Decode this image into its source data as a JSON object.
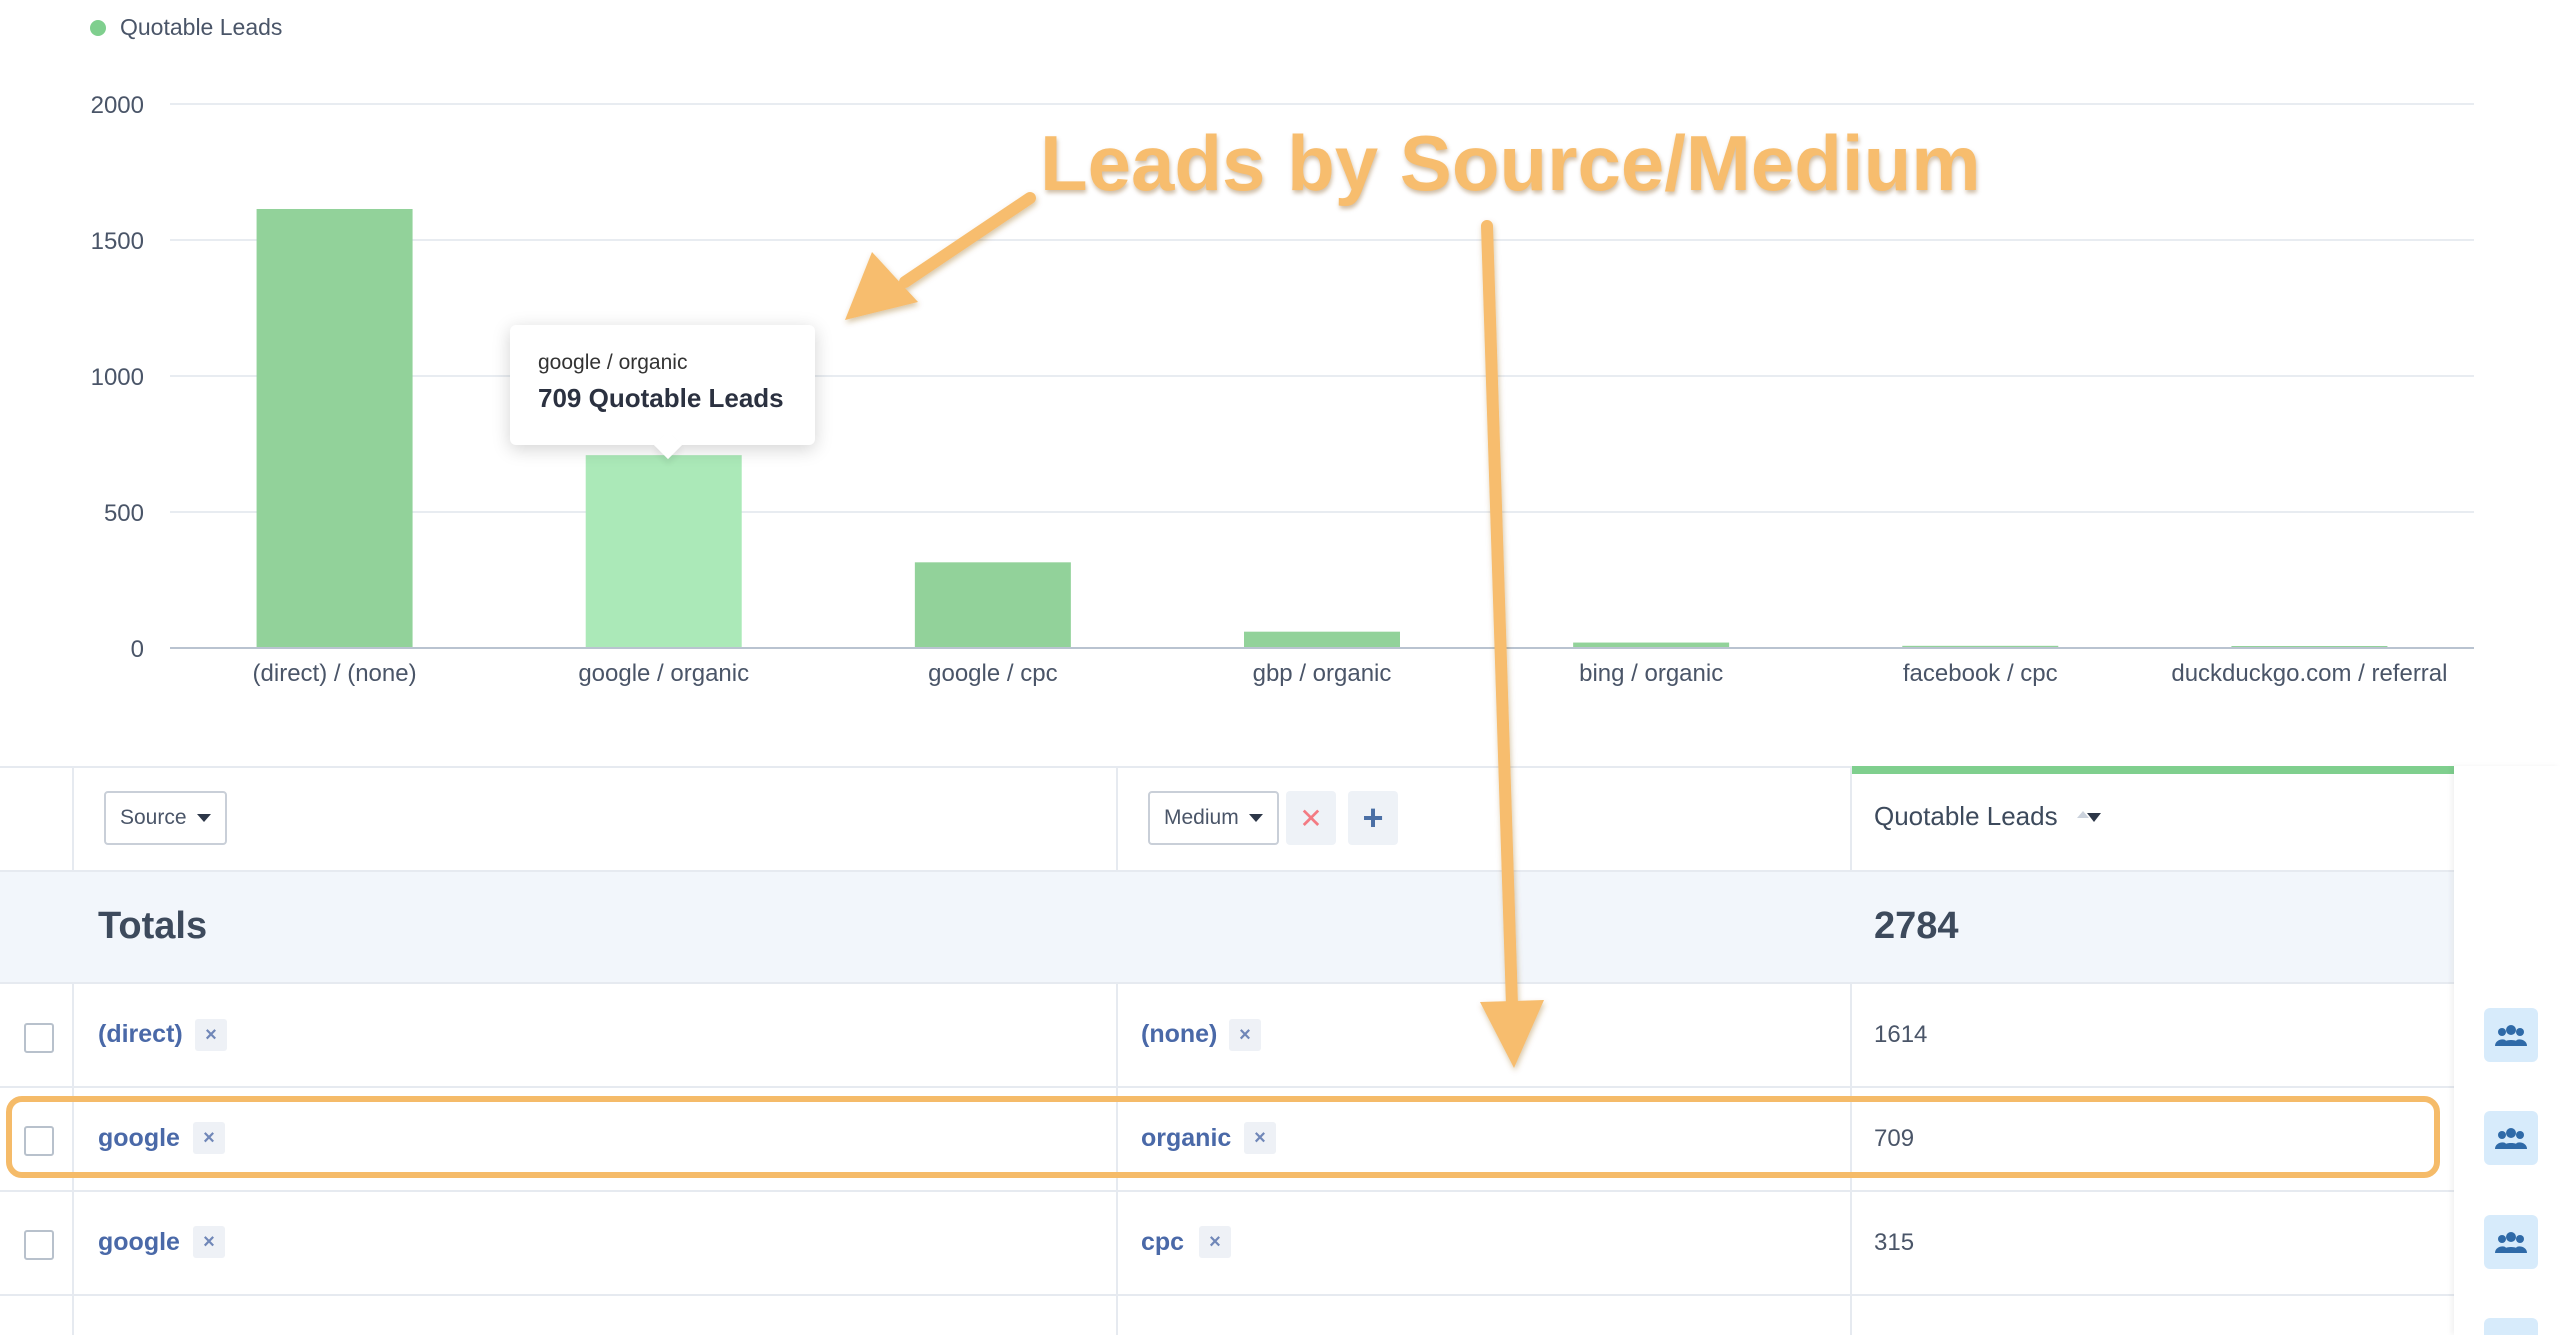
{
  "legend": {
    "label": "Quotable Leads",
    "color": "#7fcf8e"
  },
  "chart_data": {
    "type": "bar",
    "categories": [
      "(direct) / (none)",
      "google / organic",
      "google / cpc",
      "gbp / organic",
      "bing / organic",
      "facebook / cpc",
      "duckduckgo.com / referral"
    ],
    "series": [
      {
        "name": "Quotable Leads",
        "values": [
          1614,
          709,
          315,
          60,
          20,
          8,
          5
        ]
      }
    ],
    "ylim": [
      0,
      2000
    ],
    "yticks": [
      0,
      500,
      1000,
      1500,
      2000
    ],
    "grid": true,
    "highlighted_index": 1,
    "colors": {
      "bar": "#92d29a",
      "bar_highlight": "#abe9b8",
      "grid": "#e8ecf1",
      "axis": "#b9c3d0"
    }
  },
  "tooltip": {
    "category": "google / organic",
    "value_text": "709 Quotable Leads"
  },
  "annotation": {
    "title": "Leads by Source/Medium",
    "color": "#f7bd6e"
  },
  "table": {
    "source_select": "Source",
    "medium_select": "Medium",
    "remove_glyph": "✕",
    "add_glyph": "+",
    "metric_header": "Quotable Leads",
    "totals_label": "Totals",
    "totals_value": "2784",
    "chip_x": "×",
    "rows": [
      {
        "source": "(direct)",
        "medium": "(none)",
        "value": "1614"
      },
      {
        "source": "google",
        "medium": "organic",
        "value": "709"
      },
      {
        "source": "google",
        "medium": "cpc",
        "value": "315"
      }
    ]
  },
  "icons": {
    "users": "users-icon"
  }
}
